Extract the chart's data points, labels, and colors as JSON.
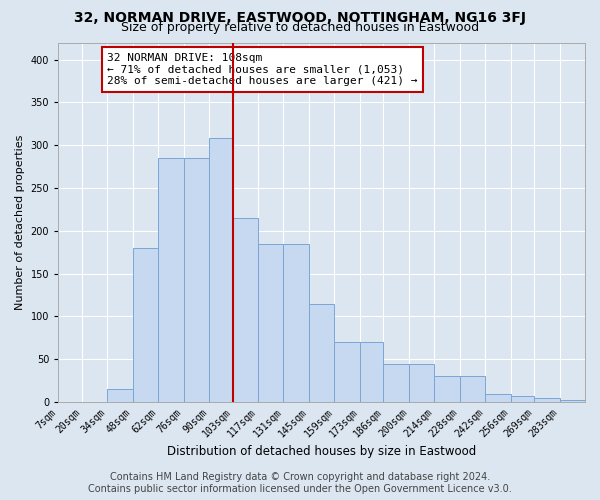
{
  "title": "32, NORMAN DRIVE, EASTWOOD, NOTTINGHAM, NG16 3FJ",
  "subtitle": "Size of property relative to detached houses in Eastwood",
  "xlabel": "Distribution of detached houses by size in Eastwood",
  "ylabel": "Number of detached properties",
  "bins": [
    "7sqm",
    "20sqm",
    "34sqm",
    "48sqm",
    "62sqm",
    "76sqm",
    "90sqm",
    "103sqm",
    "117sqm",
    "131sqm",
    "145sqm",
    "159sqm",
    "173sqm",
    "186sqm",
    "200sqm",
    "214sqm",
    "228sqm",
    "242sqm",
    "256sqm",
    "269sqm",
    "283sqm"
  ],
  "bin_edges": [
    7,
    20,
    34,
    48,
    62,
    76,
    90,
    103,
    117,
    131,
    145,
    159,
    173,
    186,
    200,
    214,
    228,
    242,
    256,
    269,
    283,
    297
  ],
  "values": [
    0,
    0,
    15,
    180,
    285,
    285,
    308,
    215,
    185,
    185,
    115,
    70,
    70,
    45,
    45,
    30,
    30,
    10,
    7,
    5,
    2
  ],
  "bar_color": "#c6d9f0",
  "bar_edgecolor": "#7aa6d4",
  "vline_x": 103,
  "vline_color": "#c00000",
  "annotation_text": "32 NORMAN DRIVE: 108sqm\n← 71% of detached houses are smaller (1,053)\n28% of semi-detached houses are larger (421) →",
  "annotation_box_color": "#ffffff",
  "annotation_box_edgecolor": "#c00000",
  "ylim": [
    0,
    420
  ],
  "yticks": [
    0,
    50,
    100,
    150,
    200,
    250,
    300,
    350,
    400
  ],
  "grid_color": "#dce6f1",
  "background_color": "#dce6f1",
  "plot_bg_color": "#dce6f1",
  "footer1": "Contains HM Land Registry data © Crown copyright and database right 2024.",
  "footer2": "Contains public sector information licensed under the Open Government Licence v3.0.",
  "title_fontsize": 10,
  "subtitle_fontsize": 9,
  "xlabel_fontsize": 8.5,
  "ylabel_fontsize": 8,
  "tick_fontsize": 7,
  "annotation_fontsize": 8,
  "footer_fontsize": 7
}
